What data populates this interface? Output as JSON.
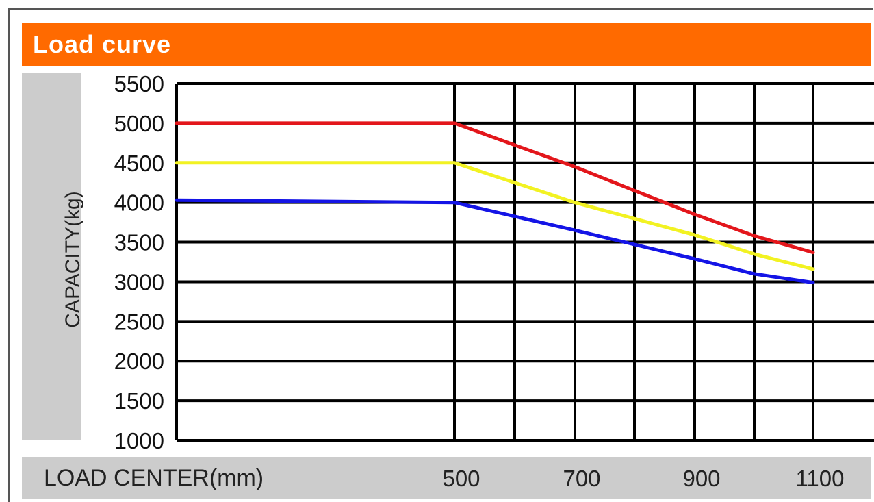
{
  "chart_data": {
    "type": "line",
    "title": "Load curve",
    "xlabel": "LOAD CENTER(mm)",
    "ylabel": "CAPACITY(kg)",
    "ylim": [
      1000,
      5500
    ],
    "xlim": [
      0,
      1100
    ],
    "y_ticks": [
      "5500",
      "5000",
      "4500",
      "4000",
      "3500",
      "3000",
      "2500",
      "2000",
      "1500",
      "1000"
    ],
    "x_ticks": [
      "500",
      "700",
      "900",
      "1100"
    ],
    "grid": true,
    "series": [
      {
        "color": "#e3161b",
        "x": [
          0,
          500,
          700,
          800,
          900,
          1000,
          1100
        ],
        "y": [
          5000,
          5000,
          4450,
          4150,
          3850,
          3580,
          3370
        ]
      },
      {
        "color": "#f2f222",
        "x": [
          0,
          500,
          700,
          900,
          1000,
          1100
        ],
        "y": [
          4500,
          4500,
          4000,
          3590,
          3350,
          3160
        ]
      },
      {
        "color": "#1414e6",
        "x": [
          0,
          500,
          700,
          800,
          900,
          1000,
          1100
        ],
        "y": [
          4030,
          4000,
          3650,
          3470,
          3290,
          3100,
          2990
        ]
      }
    ]
  },
  "colors": {
    "title_bar": "#ff6a00",
    "label_panel": "#cccccc",
    "grid": "#000000"
  }
}
